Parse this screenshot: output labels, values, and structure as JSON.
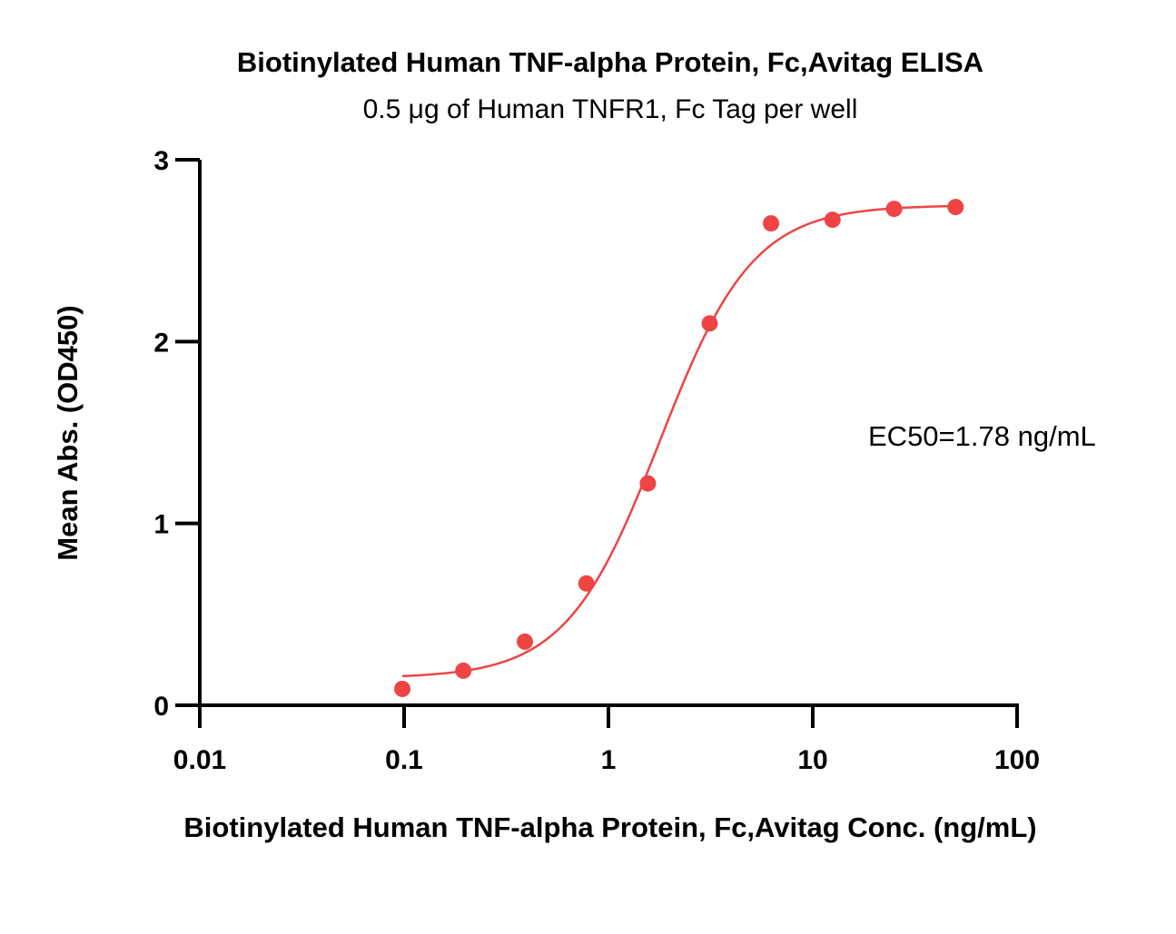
{
  "chart_data": {
    "type": "scatter",
    "title": "Biotinylated Human TNF-alpha Protein, Fc,Avitag ELISA",
    "subtitle": "0.5 μg of Human TNFR1, Fc Tag per well",
    "xlabel": "Biotinylated Human TNF-alpha Protein, Fc,Avitag Conc. (ng/mL)",
    "ylabel": "Mean Abs. (OD450)",
    "x_scale": "log",
    "xlim": [
      0.01,
      100
    ],
    "ylim": [
      0,
      3
    ],
    "x_ticks": [
      "0.01",
      "0.1",
      "1",
      "10",
      "100"
    ],
    "x_tick_values": [
      0.01,
      0.1,
      1,
      10,
      100
    ],
    "y_ticks": [
      "0",
      "1",
      "2",
      "3"
    ],
    "y_tick_values": [
      0,
      1,
      2,
      3
    ],
    "grid": false,
    "color": "#ef4444",
    "annotation": "EC50=1.78 ng/mL",
    "series": [
      {
        "points": [
          {
            "x": 0.098,
            "y": 0.09
          },
          {
            "x": 0.195,
            "y": 0.19
          },
          {
            "x": 0.39,
            "y": 0.35
          },
          {
            "x": 0.78,
            "y": 0.67
          },
          {
            "x": 1.56,
            "y": 1.22
          },
          {
            "x": 3.13,
            "y": 2.1
          },
          {
            "x": 6.25,
            "y": 2.65
          },
          {
            "x": 12.5,
            "y": 2.67
          },
          {
            "x": 25,
            "y": 2.73
          },
          {
            "x": 50,
            "y": 2.74
          }
        ],
        "fit": {
          "model": "4PL",
          "bottom": 0.15,
          "top": 2.75,
          "ec50": 1.78,
          "hill": 1.9,
          "x_range": [
            0.098,
            50
          ]
        }
      }
    ]
  }
}
